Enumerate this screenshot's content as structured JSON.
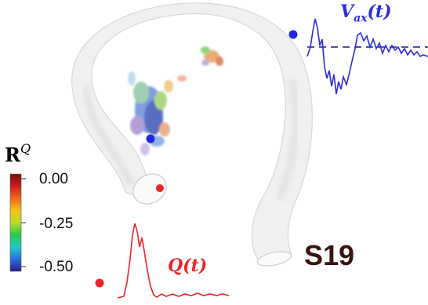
{
  "colorbar": {
    "title_main": "R",
    "title_sup": "Q",
    "ticks": [
      "0.00",
      "-0.25",
      "-0.50"
    ],
    "colors": [
      "#7a1010",
      "#c81e1e",
      "#f26a1b",
      "#f5c21a",
      "#b6de2a",
      "#2bc94a",
      "#22c9c9",
      "#2b6fe0",
      "#2a1b8f"
    ]
  },
  "subject_label": "S19",
  "inlet_signal": {
    "label": "Q(t)",
    "color": "#e8262a"
  },
  "outlet_signal": {
    "label_main": "V",
    "label_sub": "ax",
    "label_tail": "(t)",
    "color": "#2b2be0"
  },
  "markers": {
    "red": "#e8262a",
    "blue": "#2424e6"
  }
}
